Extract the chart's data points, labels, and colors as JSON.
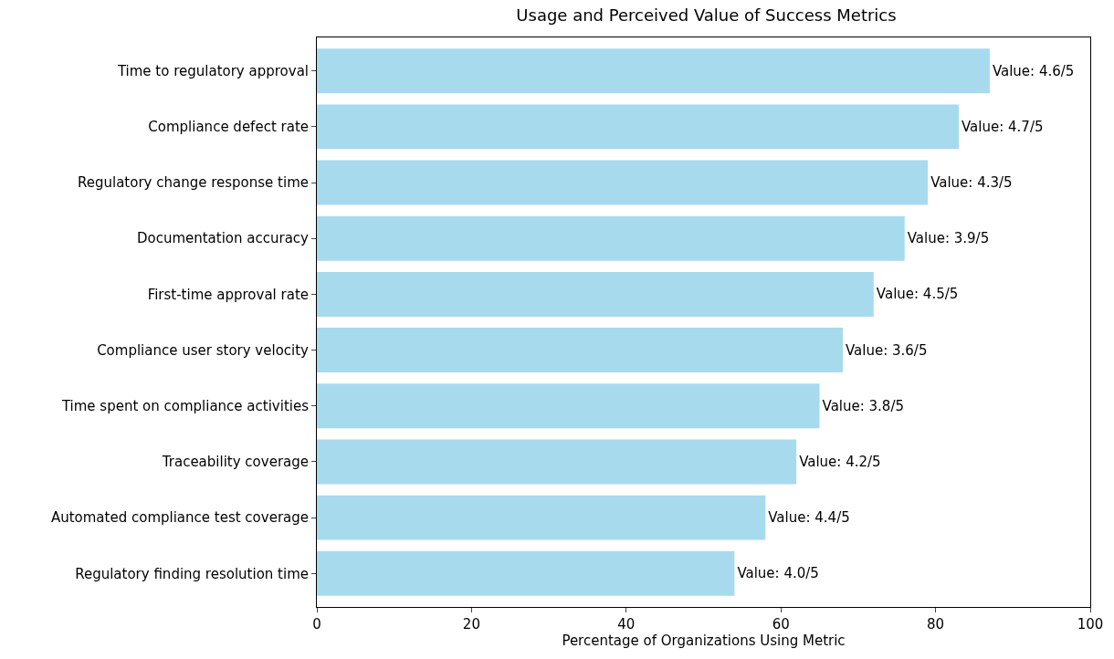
{
  "chart_data": {
    "type": "bar",
    "orientation": "horizontal",
    "title": "Usage and Perceived Value of Success Metrics",
    "xlabel": "Percentage of Organizations Using Metric",
    "categories": [
      "Time to regulatory approval",
      "Compliance defect rate",
      "Regulatory change response time",
      "Documentation accuracy",
      "First-time approval rate",
      "Compliance user story velocity",
      "Time spent on compliance activities",
      "Traceability coverage",
      "Automated compliance test coverage",
      "Regulatory finding resolution time"
    ],
    "values": [
      87,
      83,
      79,
      76,
      72,
      68,
      65,
      62,
      58,
      54
    ],
    "value_labels": [
      "Value: 4.6/5",
      "Value: 4.7/5",
      "Value: 4.3/5",
      "Value: 3.9/5",
      "Value: 4.5/5",
      "Value: 3.6/5",
      "Value: 3.8/5",
      "Value: 4.2/5",
      "Value: 4.4/5",
      "Value: 4.0/5"
    ],
    "color": "#a8daee",
    "xlim": [
      0,
      100
    ],
    "xticks": [
      0,
      20,
      40,
      60,
      80,
      100
    ],
    "legend": false
  }
}
